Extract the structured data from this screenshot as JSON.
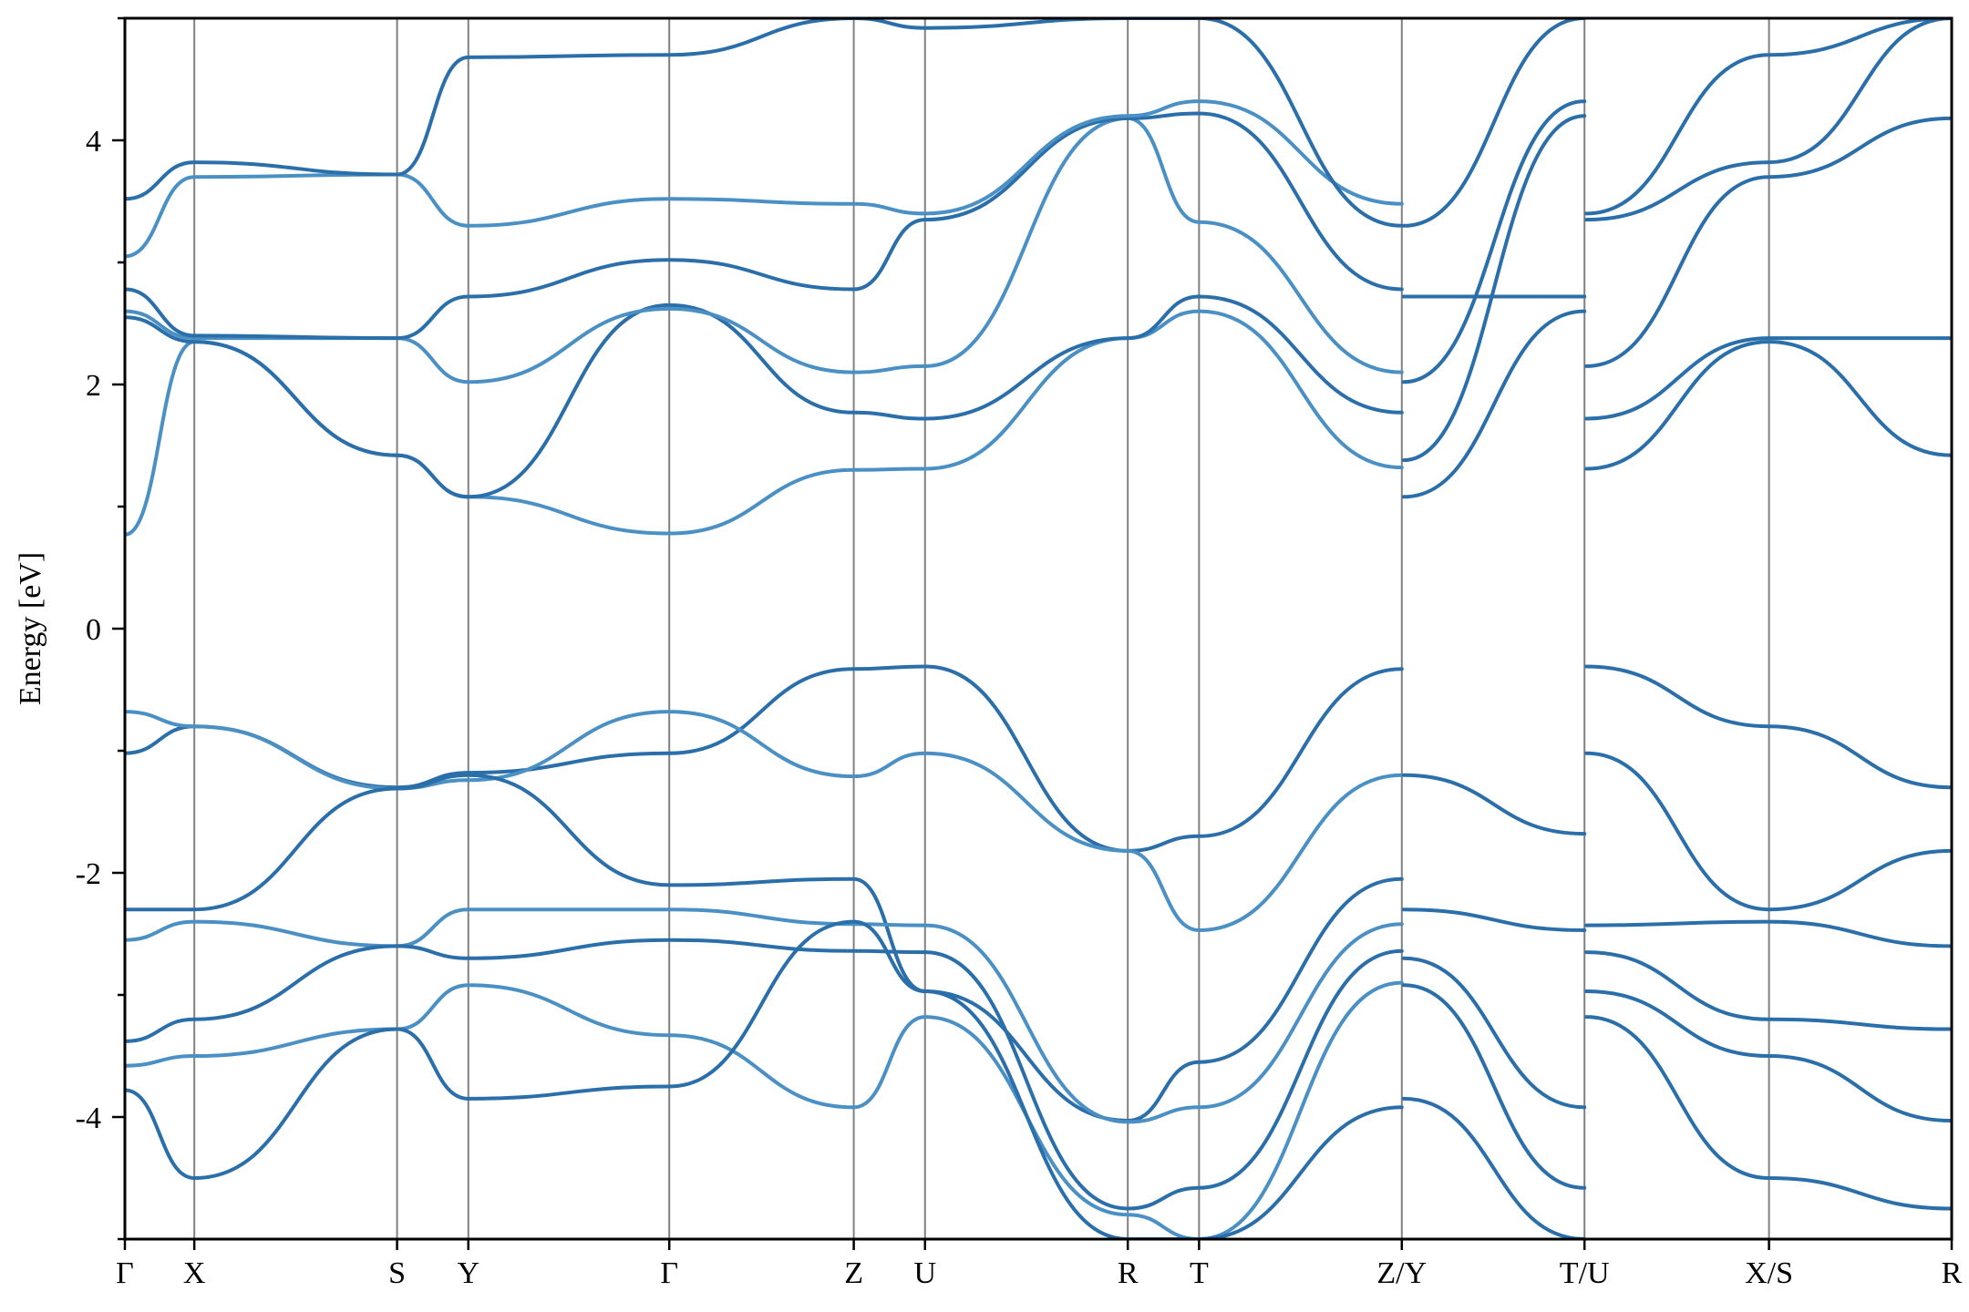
{
  "chart_data": {
    "type": "line",
    "title": "",
    "xlabel": "",
    "ylabel": "Energy [eV]",
    "ylim": [
      -5,
      5
    ],
    "yticks": [
      -4,
      -2,
      0,
      2,
      4
    ],
    "y_minor_step": 1,
    "grid": false,
    "legend": "none",
    "colors": {
      "band_dark": "#2a6eaa",
      "band_light": "#4a90c4",
      "divider": "#808080",
      "axis": "#000000"
    },
    "path_points": [
      {
        "label": "Γ",
        "x": 0.0
      },
      {
        "label": "X",
        "x": 0.38
      },
      {
        "label": "S",
        "x": 1.49
      },
      {
        "label": "Y",
        "x": 1.88
      },
      {
        "label": "Γ",
        "x": 2.98
      },
      {
        "label": "Z",
        "x": 3.99
      },
      {
        "label": "U",
        "x": 4.38
      },
      {
        "label": "R",
        "x": 5.49
      },
      {
        "label": "T",
        "x": 5.88
      },
      {
        "label": "Z/Y",
        "x": 6.99
      },
      {
        "label": "T/U",
        "x": 7.99
      },
      {
        "label": "X/S",
        "x": 9.0
      },
      {
        "label": "R",
        "x": 10.0
      }
    ],
    "series": [
      {
        "tone": "dark",
        "x": [
          0,
          0.38,
          1.49,
          1.88,
          2.98,
          3.99,
          4.38,
          5.49,
          5.88,
          6.99
        ],
        "y": [
          -1.02,
          -0.8,
          -1.3,
          -1.18,
          -1.02,
          -0.33,
          -0.31,
          -1.82,
          -1.7,
          -0.33
        ]
      },
      {
        "tone": "light",
        "x": [
          0,
          0.38,
          1.49,
          1.88,
          2.98,
          3.99,
          4.38,
          5.49,
          5.88,
          6.99
        ],
        "y": [
          -0.68,
          -0.8,
          -1.31,
          -1.24,
          -0.68,
          -1.21,
          -1.02,
          -1.82,
          -2.47,
          -1.2
        ]
      },
      {
        "tone": "dark",
        "x": [
          0,
          0.38,
          1.49,
          1.88,
          2.98,
          3.99,
          4.38,
          5.49,
          5.88,
          6.99
        ],
        "y": [
          -2.3,
          -2.3,
          -1.31,
          -1.2,
          -2.1,
          -2.05,
          -2.97,
          -4.03,
          -3.55,
          -2.05
        ]
      },
      {
        "tone": "light",
        "x": [
          0,
          0.38,
          1.49,
          1.88,
          2.98,
          3.99,
          4.38,
          5.49,
          5.88,
          6.99
        ],
        "y": [
          -2.55,
          -2.4,
          -2.6,
          -2.3,
          -2.3,
          -2.42,
          -2.43,
          -4.04,
          -3.92,
          -2.42
        ]
      },
      {
        "tone": "dark",
        "x": [
          0,
          0.38,
          1.49,
          1.88,
          2.98,
          3.99,
          4.38,
          5.49,
          5.88,
          6.99
        ],
        "y": [
          -3.38,
          -3.2,
          -2.6,
          -2.7,
          -2.55,
          -2.64,
          -2.65,
          -4.75,
          -4.58,
          -2.64
        ]
      },
      {
        "tone": "light",
        "x": [
          0,
          0.38,
          1.49,
          1.88,
          2.98,
          3.99,
          4.38,
          5.49,
          5.88,
          6.99
        ],
        "y": [
          -3.58,
          -3.5,
          -3.28,
          -2.92,
          -3.33,
          -3.92,
          -3.18,
          -4.8,
          -5.0,
          -2.9
        ]
      },
      {
        "tone": "dark",
        "x": [
          0,
          0.38,
          1.49,
          1.88,
          2.98,
          3.99,
          4.38,
          5.49,
          5.88,
          6.99
        ],
        "y": [
          -3.78,
          -4.5,
          -3.28,
          -3.85,
          -3.75,
          -2.4,
          -2.97,
          -5.0,
          -5.0,
          -3.92
        ]
      },
      {
        "tone": "light",
        "x": [
          0,
          0.38,
          1.49,
          1.88,
          2.98,
          3.99,
          4.38,
          5.49,
          5.88,
          6.99
        ],
        "y": [
          0.77,
          2.35,
          1.42,
          1.08,
          0.78,
          1.3,
          1.31,
          2.38,
          2.6,
          1.32
        ]
      },
      {
        "tone": "dark",
        "x": [
          0,
          0.38,
          1.49,
          1.88,
          2.98,
          3.99,
          4.38,
          5.49,
          5.88,
          6.99
        ],
        "y": [
          2.55,
          2.35,
          1.42,
          1.08,
          2.65,
          1.77,
          1.72,
          2.38,
          2.72,
          1.77
        ]
      },
      {
        "tone": "light",
        "x": [
          0,
          0.38,
          1.49,
          1.88,
          2.98,
          3.99,
          4.38,
          5.49,
          5.88,
          6.99
        ],
        "y": [
          2.6,
          2.38,
          2.38,
          2.02,
          2.62,
          2.1,
          2.15,
          4.18,
          3.33,
          2.1
        ]
      },
      {
        "tone": "dark",
        "x": [
          0,
          0.38,
          1.49,
          1.88,
          2.98,
          3.99,
          4.38,
          5.49,
          5.88,
          6.99
        ],
        "y": [
          2.78,
          2.4,
          2.38,
          2.72,
          3.02,
          2.78,
          3.35,
          4.18,
          4.22,
          2.78
        ]
      },
      {
        "tone": "light",
        "x": [
          0,
          0.38,
          1.49,
          1.88,
          2.98,
          3.99,
          4.38,
          5.49,
          5.88,
          6.99
        ],
        "y": [
          3.05,
          3.7,
          3.72,
          3.3,
          3.52,
          3.48,
          3.4,
          4.2,
          4.32,
          3.48
        ]
      },
      {
        "tone": "dark",
        "x": [
          0,
          0.38,
          1.49,
          1.88,
          2.98,
          3.99,
          4.38,
          5.49,
          5.88,
          6.99
        ],
        "y": [
          3.52,
          3.82,
          3.72,
          4.68,
          4.7,
          5.0,
          4.92,
          5.0,
          5.0,
          3.3
        ]
      },
      {
        "tone": "dark",
        "x": [
          7.0,
          7.99
        ],
        "y": [
          -1.2,
          -1.68
        ]
      },
      {
        "tone": "dark",
        "x": [
          7.0,
          7.99
        ],
        "y": [
          -2.3,
          -2.47
        ]
      },
      {
        "tone": "dark",
        "x": [
          7.0,
          7.99
        ],
        "y": [
          -2.7,
          -3.92
        ]
      },
      {
        "tone": "dark",
        "x": [
          7.0,
          7.99
        ],
        "y": [
          -2.92,
          -4.58
        ]
      },
      {
        "tone": "dark",
        "x": [
          7.0,
          7.99
        ],
        "y": [
          -3.85,
          -5.0
        ]
      },
      {
        "tone": "dark",
        "x": [
          7.0,
          7.99
        ],
        "y": [
          1.08,
          2.6
        ]
      },
      {
        "tone": "dark",
        "x": [
          7.0,
          7.99
        ],
        "y": [
          1.38,
          4.2
        ]
      },
      {
        "tone": "dark",
        "x": [
          7.0,
          7.99
        ],
        "y": [
          2.02,
          4.32
        ]
      },
      {
        "tone": "dark",
        "x": [
          7.0,
          7.99
        ],
        "y": [
          2.72,
          2.72
        ]
      },
      {
        "tone": "dark",
        "x": [
          7.0,
          7.99
        ],
        "y": [
          3.3,
          5.0
        ]
      },
      {
        "tone": "dark",
        "x": [
          8.0,
          9.0,
          10.0
        ],
        "y": [
          -0.31,
          -0.8,
          -1.3
        ]
      },
      {
        "tone": "dark",
        "x": [
          8.0,
          9.0,
          10.0
        ],
        "y": [
          -1.02,
          -2.3,
          -1.82
        ]
      },
      {
        "tone": "dark",
        "x": [
          8.0,
          9.0,
          10.0
        ],
        "y": [
          -2.43,
          -2.4,
          -2.6
        ]
      },
      {
        "tone": "dark",
        "x": [
          8.0,
          9.0,
          10.0
        ],
        "y": [
          -2.65,
          -3.2,
          -3.28
        ]
      },
      {
        "tone": "dark",
        "x": [
          8.0,
          9.0,
          10.0
        ],
        "y": [
          -2.97,
          -3.5,
          -4.03
        ]
      },
      {
        "tone": "dark",
        "x": [
          8.0,
          9.0,
          10.0
        ],
        "y": [
          -3.18,
          -4.5,
          -4.75
        ]
      },
      {
        "tone": "dark",
        "x": [
          8.0,
          9.0,
          10.0
        ],
        "y": [
          1.31,
          2.35,
          1.42
        ]
      },
      {
        "tone": "dark",
        "x": [
          8.0,
          9.0,
          10.0
        ],
        "y": [
          1.72,
          2.38,
          2.38
        ]
      },
      {
        "tone": "dark",
        "x": [
          8.0,
          9.0,
          10.0
        ],
        "y": [
          2.15,
          3.7,
          4.18
        ]
      },
      {
        "tone": "dark",
        "x": [
          8.0,
          9.0,
          10.0
        ],
        "y": [
          3.35,
          3.82,
          5.0
        ]
      },
      {
        "tone": "dark",
        "x": [
          8.0,
          9.0,
          10.0
        ],
        "y": [
          3.4,
          4.7,
          5.0
        ]
      }
    ]
  }
}
